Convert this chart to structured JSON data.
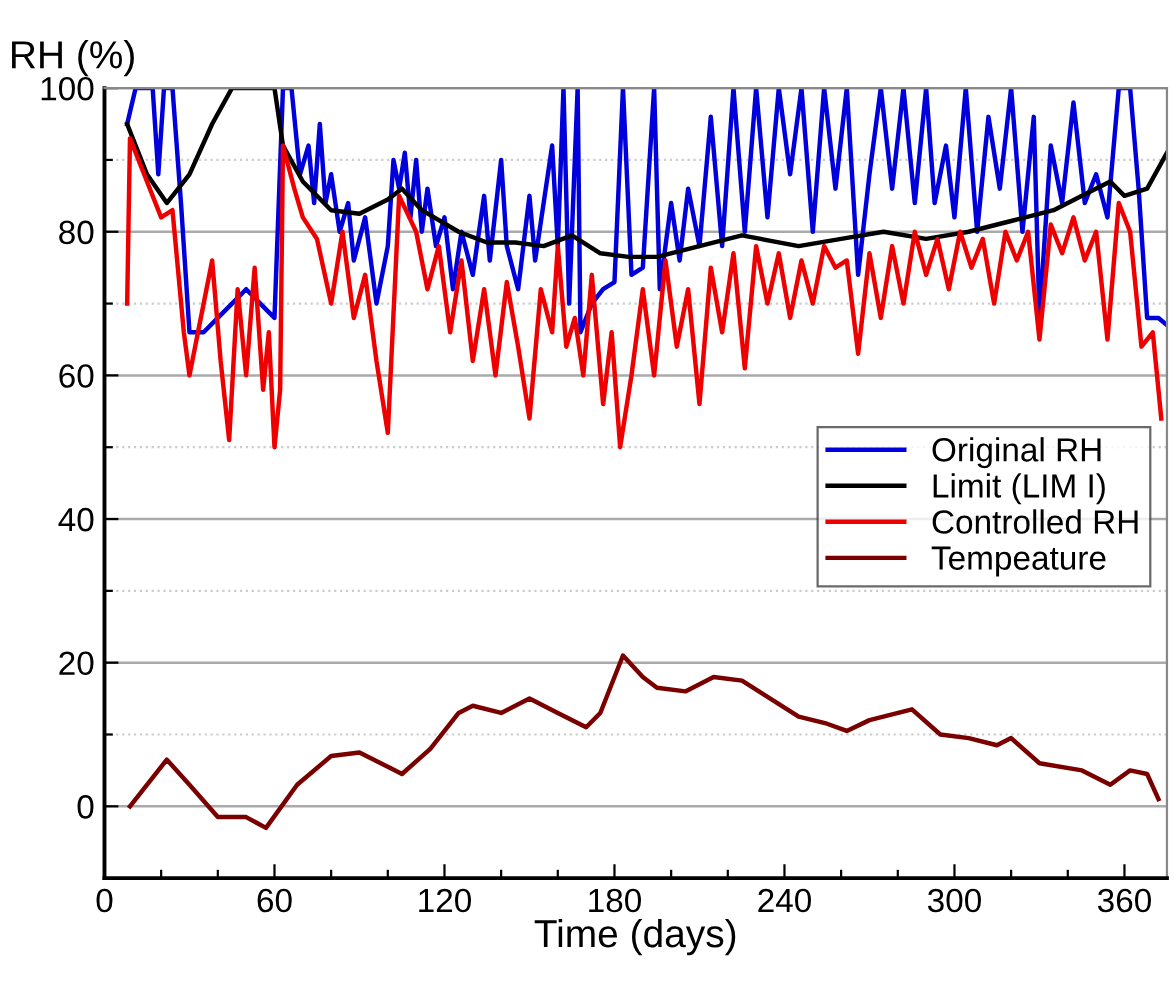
{
  "chart_data": {
    "type": "line",
    "ylabel": "RH (%)",
    "xlabel": "Time (days)",
    "xlim": [
      0,
      375
    ],
    "ylim": [
      -10,
      100
    ],
    "xticks": [
      0,
      {
        "value": 20,
        "label": null
      },
      {
        "value": 40,
        "label": null
      },
      60,
      {
        "value": 80,
        "label": null
      },
      {
        "value": 100,
        "label": null
      },
      120,
      {
        "value": 140,
        "label": null
      },
      {
        "value": 160,
        "label": null
      },
      180,
      {
        "value": 200,
        "label": null
      },
      {
        "value": 220,
        "label": null
      },
      240,
      {
        "value": 260,
        "label": null
      },
      {
        "value": 280,
        "label": null
      },
      300,
      {
        "value": 320,
        "label": null
      },
      {
        "value": 340,
        "label": null
      },
      360
    ],
    "yticks": [
      {
        "value": -10,
        "label": null
      },
      0,
      {
        "value": 10,
        "label": null
      },
      20,
      {
        "value": 30,
        "label": null
      },
      40,
      {
        "value": 50,
        "label": null
      },
      60,
      {
        "value": 70,
        "label": null
      },
      80,
      {
        "value": 90,
        "label": null
      },
      100
    ],
    "grid": "y",
    "legend": "center right",
    "line_style": "solid",
    "marker": "none",
    "series": [
      {
        "name": "Original RH",
        "color": "#0000dd",
        "x": [
          8,
          11,
          17,
          19,
          21,
          24,
          27,
          30,
          35,
          40,
          45,
          50,
          55,
          60,
          63,
          66,
          69,
          72,
          74,
          76,
          78,
          80,
          83,
          86,
          88,
          92,
          96,
          100,
          102,
          104,
          106,
          108,
          110,
          112,
          114,
          117,
          120,
          123,
          126,
          130,
          134,
          136,
          140,
          142,
          146,
          150,
          152,
          158,
          160,
          162,
          164,
          167,
          168,
          172,
          176,
          180,
          183,
          186,
          190,
          194,
          196,
          200,
          203,
          206,
          210,
          214,
          218,
          222,
          226,
          230,
          234,
          238,
          242,
          246,
          250,
          254,
          258,
          262,
          266,
          270,
          274,
          278,
          282,
          286,
          290,
          293,
          297,
          300,
          304,
          308,
          312,
          316,
          320,
          324,
          328,
          330,
          334,
          338,
          342,
          346,
          350,
          354,
          358,
          362,
          365,
          368,
          372,
          375
        ],
        "values": [
          95,
          100,
          100,
          88,
          100,
          100,
          84,
          66,
          66,
          68,
          70,
          72,
          70,
          68,
          100,
          100,
          88,
          92,
          84,
          95,
          84,
          88,
          80,
          84,
          76,
          82,
          70,
          78,
          90,
          86,
          91,
          82,
          90,
          80,
          86,
          78,
          82,
          72,
          80,
          74,
          85,
          76,
          90,
          78,
          72,
          85,
          76,
          92,
          78,
          100,
          70,
          100,
          66,
          70,
          72,
          73,
          100,
          74,
          75,
          100,
          72,
          84,
          76,
          86,
          78,
          96,
          78,
          100,
          80,
          100,
          82,
          100,
          88,
          100,
          80,
          100,
          86,
          100,
          74,
          88,
          100,
          86,
          100,
          84,
          100,
          84,
          92,
          82,
          100,
          80,
          96,
          86,
          100,
          80,
          96,
          68,
          92,
          84,
          98,
          84,
          88,
          82,
          100,
          100,
          86,
          68,
          68,
          67
        ]
      },
      {
        "name": "Limit (LIM I)",
        "color": "#000000",
        "x": [
          8,
          15,
          22,
          30,
          38,
          45,
          60,
          63,
          70,
          80,
          90,
          100,
          105,
          112,
          125,
          135,
          145,
          155,
          165,
          175,
          185,
          195,
          210,
          225,
          245,
          260,
          275,
          290,
          305,
          320,
          335,
          345,
          355,
          360,
          368,
          375
        ],
        "values": [
          95,
          88,
          84,
          88,
          95,
          100,
          100,
          92,
          87,
          83,
          82.5,
          84.5,
          86,
          83,
          80,
          78.5,
          78.5,
          78,
          79.5,
          77,
          76.5,
          76.5,
          78,
          79.5,
          78,
          79,
          80,
          79,
          80,
          81.5,
          83,
          85,
          87,
          85,
          86,
          91
        ]
      },
      {
        "name": "Controlled RH",
        "color": "#ee0000",
        "x": [
          8,
          9,
          15,
          20,
          24,
          28,
          30,
          33,
          38,
          41,
          44,
          47,
          50,
          53,
          56,
          58,
          60,
          62,
          63,
          67,
          70,
          75,
          80,
          84,
          88,
          92,
          96,
          100,
          104,
          110,
          114,
          118,
          122,
          126,
          130,
          134,
          138,
          142,
          146,
          150,
          154,
          158,
          160,
          163,
          166,
          169,
          172,
          176,
          179,
          182,
          186,
          190,
          194,
          198,
          202,
          206,
          210,
          214,
          218,
          222,
          226,
          230,
          234,
          238,
          242,
          246,
          250,
          254,
          258,
          262,
          266,
          270,
          274,
          278,
          282,
          286,
          290,
          294,
          298,
          302,
          306,
          310,
          314,
          318,
          322,
          326,
          330,
          334,
          338,
          342,
          346,
          350,
          354,
          358,
          362,
          366,
          370,
          373
        ],
        "values": [
          70,
          93,
          87,
          82,
          83,
          66,
          60,
          66,
          76,
          62,
          51,
          72,
          60,
          75,
          58,
          66,
          50,
          58,
          92,
          86,
          82,
          79,
          70,
          80,
          68,
          74,
          62,
          52,
          85,
          80,
          72,
          78,
          66,
          76,
          62,
          72,
          60,
          73,
          64,
          54,
          72,
          66,
          78,
          64,
          68,
          60,
          74,
          56,
          66,
          50,
          60,
          72,
          60,
          76,
          64,
          72,
          56,
          75,
          66,
          77,
          61,
          78,
          70,
          77,
          68,
          76,
          70,
          78,
          75,
          76,
          63,
          77,
          68,
          78,
          70,
          80,
          74,
          79,
          72,
          80,
          75,
          79,
          70,
          80,
          76,
          80,
          65,
          81,
          77,
          82,
          76,
          80,
          65,
          84,
          80,
          64,
          66,
          54
        ]
      },
      {
        "name": "Tempeature",
        "color": "#7a0000",
        "x": [
          9,
          22,
          30,
          40,
          50,
          57,
          68,
          80,
          90,
          100,
          105,
          115,
          125,
          130,
          140,
          150,
          160,
          170,
          175,
          183,
          190,
          195,
          205,
          215,
          225,
          235,
          245,
          255,
          262,
          270,
          285,
          295,
          305,
          315,
          320,
          330,
          345,
          355,
          362,
          368,
          372
        ],
        "values": [
          0,
          6.5,
          3,
          -1.5,
          -1.5,
          -3,
          3,
          7,
          7.5,
          5.5,
          4.5,
          8,
          13,
          14,
          13,
          15,
          13,
          11,
          13,
          21,
          18,
          16.5,
          16,
          18,
          17.5,
          15,
          12.5,
          11.5,
          10.5,
          12,
          13.5,
          10,
          9.5,
          8.5,
          9.5,
          6,
          5,
          3,
          5,
          4.5,
          1
        ]
      }
    ]
  }
}
